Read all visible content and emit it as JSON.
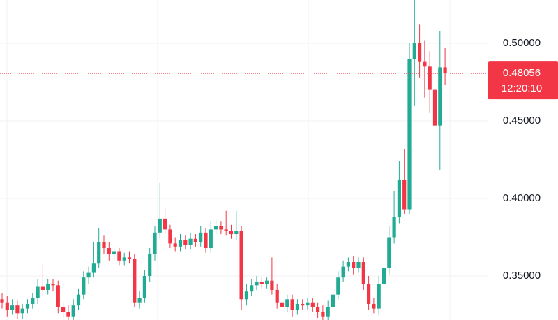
{
  "chart_data": {
    "type": "candlestick",
    "open": [
      0.335,
      0.333,
      0.328,
      0.331,
      0.326,
      0.329,
      0.332,
      0.336,
      0.343,
      0.341,
      0.345,
      0.344,
      0.33,
      0.327,
      0.324,
      0.331,
      0.338,
      0.349,
      0.352,
      0.358,
      0.372,
      0.368,
      0.364,
      0.366,
      0.36,
      0.362,
      0.361,
      0.333,
      0.336,
      0.35,
      0.364,
      0.378,
      0.387,
      0.38,
      0.371,
      0.369,
      0.373,
      0.37,
      0.374,
      0.372,
      0.378,
      0.368,
      0.38,
      0.382,
      0.38,
      0.379,
      0.377,
      0.379,
      0.335,
      0.34,
      0.344,
      0.346,
      0.345,
      0.347,
      0.341,
      0.333,
      0.33,
      0.335,
      0.328,
      0.332,
      0.331,
      0.333,
      0.33,
      0.327,
      0.324,
      0.33,
      0.338,
      0.349,
      0.356,
      0.359,
      0.355,
      0.359,
      0.345,
      0.332,
      0.329,
      0.345,
      0.355,
      0.375,
      0.388,
      0.412,
      0.393,
      0.49,
      0.5,
      0.488,
      0.485,
      0.47,
      0.447,
      0.4845
    ],
    "high": [
      0.339,
      0.337,
      0.335,
      0.334,
      0.332,
      0.335,
      0.339,
      0.348,
      0.358,
      0.348,
      0.348,
      0.347,
      0.333,
      0.331,
      0.335,
      0.342,
      0.353,
      0.356,
      0.372,
      0.381,
      0.376,
      0.372,
      0.369,
      0.368,
      0.365,
      0.366,
      0.364,
      0.34,
      0.354,
      0.368,
      0.382,
      0.41,
      0.394,
      0.383,
      0.375,
      0.377,
      0.376,
      0.378,
      0.377,
      0.382,
      0.381,
      0.385,
      0.386,
      0.385,
      0.392,
      0.383,
      0.392,
      0.382,
      0.345,
      0.348,
      0.35,
      0.349,
      0.349,
      0.362,
      0.345,
      0.337,
      0.338,
      0.338,
      0.335,
      0.335,
      0.336,
      0.336,
      0.333,
      0.331,
      0.334,
      0.342,
      0.353,
      0.36,
      0.362,
      0.363,
      0.362,
      0.362,
      0.35,
      0.336,
      0.35,
      0.363,
      0.382,
      0.405,
      0.424,
      0.432,
      0.5,
      0.528,
      0.512,
      0.502,
      0.495,
      0.478,
      0.508,
      0.497
    ],
    "low": [
      0.329,
      0.324,
      0.325,
      0.322,
      0.322,
      0.326,
      0.329,
      0.332,
      0.337,
      0.338,
      0.34,
      0.326,
      0.323,
      0.32,
      0.321,
      0.328,
      0.335,
      0.345,
      0.349,
      0.355,
      0.364,
      0.36,
      0.361,
      0.357,
      0.357,
      0.358,
      0.33,
      0.329,
      0.333,
      0.346,
      0.36,
      0.374,
      0.377,
      0.368,
      0.366,
      0.366,
      0.367,
      0.367,
      0.369,
      0.369,
      0.365,
      0.365,
      0.377,
      0.377,
      0.376,
      0.374,
      0.373,
      0.328,
      0.331,
      0.337,
      0.341,
      0.342,
      0.342,
      0.338,
      0.329,
      0.326,
      0.327,
      0.324,
      0.325,
      0.328,
      0.328,
      0.327,
      0.323,
      0.32,
      0.321,
      0.327,
      0.335,
      0.346,
      0.353,
      0.351,
      0.352,
      0.341,
      0.328,
      0.326,
      0.325,
      0.341,
      0.351,
      0.371,
      0.384,
      0.39,
      0.39,
      0.46,
      0.478,
      0.465,
      0.455,
      0.435,
      0.418,
      0.473
    ],
    "close": [
      0.333,
      0.328,
      0.331,
      0.326,
      0.329,
      0.332,
      0.336,
      0.343,
      0.341,
      0.345,
      0.344,
      0.33,
      0.327,
      0.324,
      0.331,
      0.338,
      0.349,
      0.352,
      0.358,
      0.372,
      0.368,
      0.364,
      0.366,
      0.36,
      0.362,
      0.361,
      0.333,
      0.336,
      0.35,
      0.364,
      0.378,
      0.387,
      0.38,
      0.371,
      0.369,
      0.373,
      0.37,
      0.374,
      0.372,
      0.378,
      0.368,
      0.38,
      0.382,
      0.38,
      0.379,
      0.377,
      0.379,
      0.335,
      0.34,
      0.344,
      0.346,
      0.345,
      0.347,
      0.341,
      0.333,
      0.33,
      0.335,
      0.328,
      0.332,
      0.331,
      0.333,
      0.33,
      0.327,
      0.324,
      0.33,
      0.338,
      0.349,
      0.356,
      0.359,
      0.355,
      0.359,
      0.345,
      0.332,
      0.329,
      0.345,
      0.355,
      0.375,
      0.388,
      0.412,
      0.393,
      0.49,
      0.5,
      0.488,
      0.485,
      0.47,
      0.447,
      0.4845,
      0.48056
    ],
    "up_color": "#22ab94",
    "down_color": "#f23645",
    "ylim": [
      0.32162,
      0.52793
    ],
    "yticks": [
      {
        "value": 0.35,
        "label": "0.35000"
      },
      {
        "value": 0.4,
        "label": "0.40000"
      },
      {
        "value": 0.45,
        "label": "0.45000"
      },
      {
        "value": 0.5,
        "label": "0.50000"
      }
    ],
    "grid": true,
    "last_price": {
      "value": 0.48056,
      "label": "0.48056"
    },
    "countdown": "12:20:10"
  }
}
